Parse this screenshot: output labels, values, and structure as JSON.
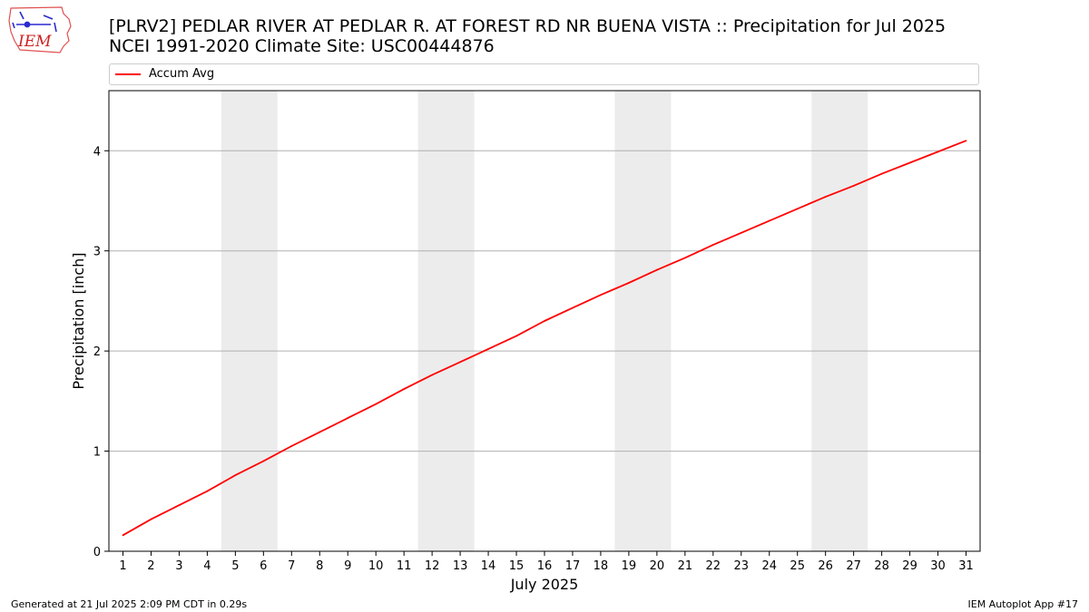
{
  "header": {
    "title_line1": "[PLRV2] PEDLAR RIVER  AT PEDLAR R. AT FOREST RD NR BUENA VISTA :: Precipitation for Jul 2025",
    "title_line2": "NCEI 1991-2020 Climate Site: USC00444876",
    "logo_text": "IEM"
  },
  "footer": {
    "generated": "Generated at 21 Jul 2025 2:09 PM CDT in 0.29s",
    "app": "IEM Autoplot App #17"
  },
  "colors": {
    "line": "#ff0000",
    "weekend_band": "#ececec",
    "grid": "#b0b0b0"
  },
  "chart_data": {
    "type": "line",
    "title": "[PLRV2] PEDLAR RIVER  AT PEDLAR R. AT FOREST RD NR BUENA VISTA :: Precipitation for Jul 2025",
    "subtitle": "NCEI 1991-2020 Climate Site: USC00444876",
    "xlabel": "July 2025",
    "ylabel": "Precipitation [inch]",
    "xlim": [
      0.5,
      31.5
    ],
    "ylim": [
      0,
      4.6
    ],
    "yticks": [
      0,
      1,
      2,
      3,
      4
    ],
    "x": [
      1,
      2,
      3,
      4,
      5,
      6,
      7,
      8,
      9,
      10,
      11,
      12,
      13,
      14,
      15,
      16,
      17,
      18,
      19,
      20,
      21,
      22,
      23,
      24,
      25,
      26,
      27,
      28,
      29,
      30,
      31
    ],
    "x_tick_labels": [
      "1",
      "2",
      "3",
      "4",
      "5",
      "6",
      "7",
      "8",
      "9",
      "10",
      "11",
      "12",
      "13",
      "14",
      "15",
      "16",
      "17",
      "18",
      "19",
      "20",
      "21",
      "22",
      "23",
      "24",
      "25",
      "26",
      "27",
      "28",
      "29",
      "30",
      "31"
    ],
    "series": [
      {
        "name": "Accum Avg",
        "color": "#ff0000",
        "values": [
          0.16,
          0.32,
          0.46,
          0.6,
          0.76,
          0.9,
          1.05,
          1.19,
          1.33,
          1.47,
          1.62,
          1.76,
          1.89,
          2.02,
          2.15,
          2.3,
          2.43,
          2.56,
          2.68,
          2.81,
          2.93,
          3.06,
          3.18,
          3.3,
          3.42,
          3.54,
          3.65,
          3.77,
          3.88,
          3.99,
          4.1
        ]
      }
    ],
    "weekend_bands": [
      [
        5,
        6
      ],
      [
        12,
        13
      ],
      [
        19,
        20
      ],
      [
        26,
        27
      ]
    ],
    "grid": "y-major",
    "legend_position": "top"
  }
}
